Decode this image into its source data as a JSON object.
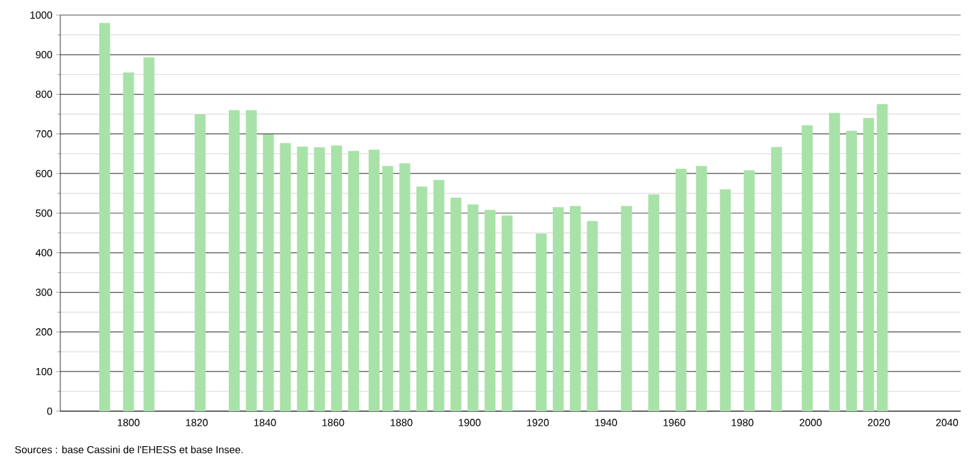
{
  "chart_data": {
    "type": "bar",
    "x": [
      1793,
      1800,
      1806,
      1821,
      1831,
      1836,
      1841,
      1846,
      1851,
      1856,
      1861,
      1866,
      1872,
      1876,
      1881,
      1886,
      1891,
      1896,
      1901,
      1906,
      1911,
      1921,
      1926,
      1931,
      1936,
      1946,
      1954,
      1962,
      1968,
      1975,
      1982,
      1990,
      1999,
      2007,
      2012,
      2017,
      2021
    ],
    "values": [
      980,
      855,
      893,
      749,
      760,
      760,
      699,
      677,
      668,
      666,
      671,
      657,
      660,
      619,
      626,
      567,
      584,
      539,
      522,
      508,
      494,
      448,
      515,
      518,
      480,
      518,
      547,
      612,
      619,
      560,
      608,
      667,
      722,
      753,
      708,
      740,
      775
    ],
    "color": "#a8e2a8",
    "xlim": [
      1780,
      2044
    ],
    "ylim": [
      0,
      1000
    ],
    "xticks": [
      1800,
      1820,
      1840,
      1860,
      1880,
      1900,
      1920,
      1940,
      1960,
      1980,
      2000,
      2020,
      2040
    ],
    "yticks": [
      0,
      100,
      200,
      300,
      400,
      500,
      600,
      700,
      800,
      900,
      1000
    ],
    "grid": "y",
    "annotations": [
      "Sources : base Cassini de l'EHESS et base Insee."
    ]
  }
}
